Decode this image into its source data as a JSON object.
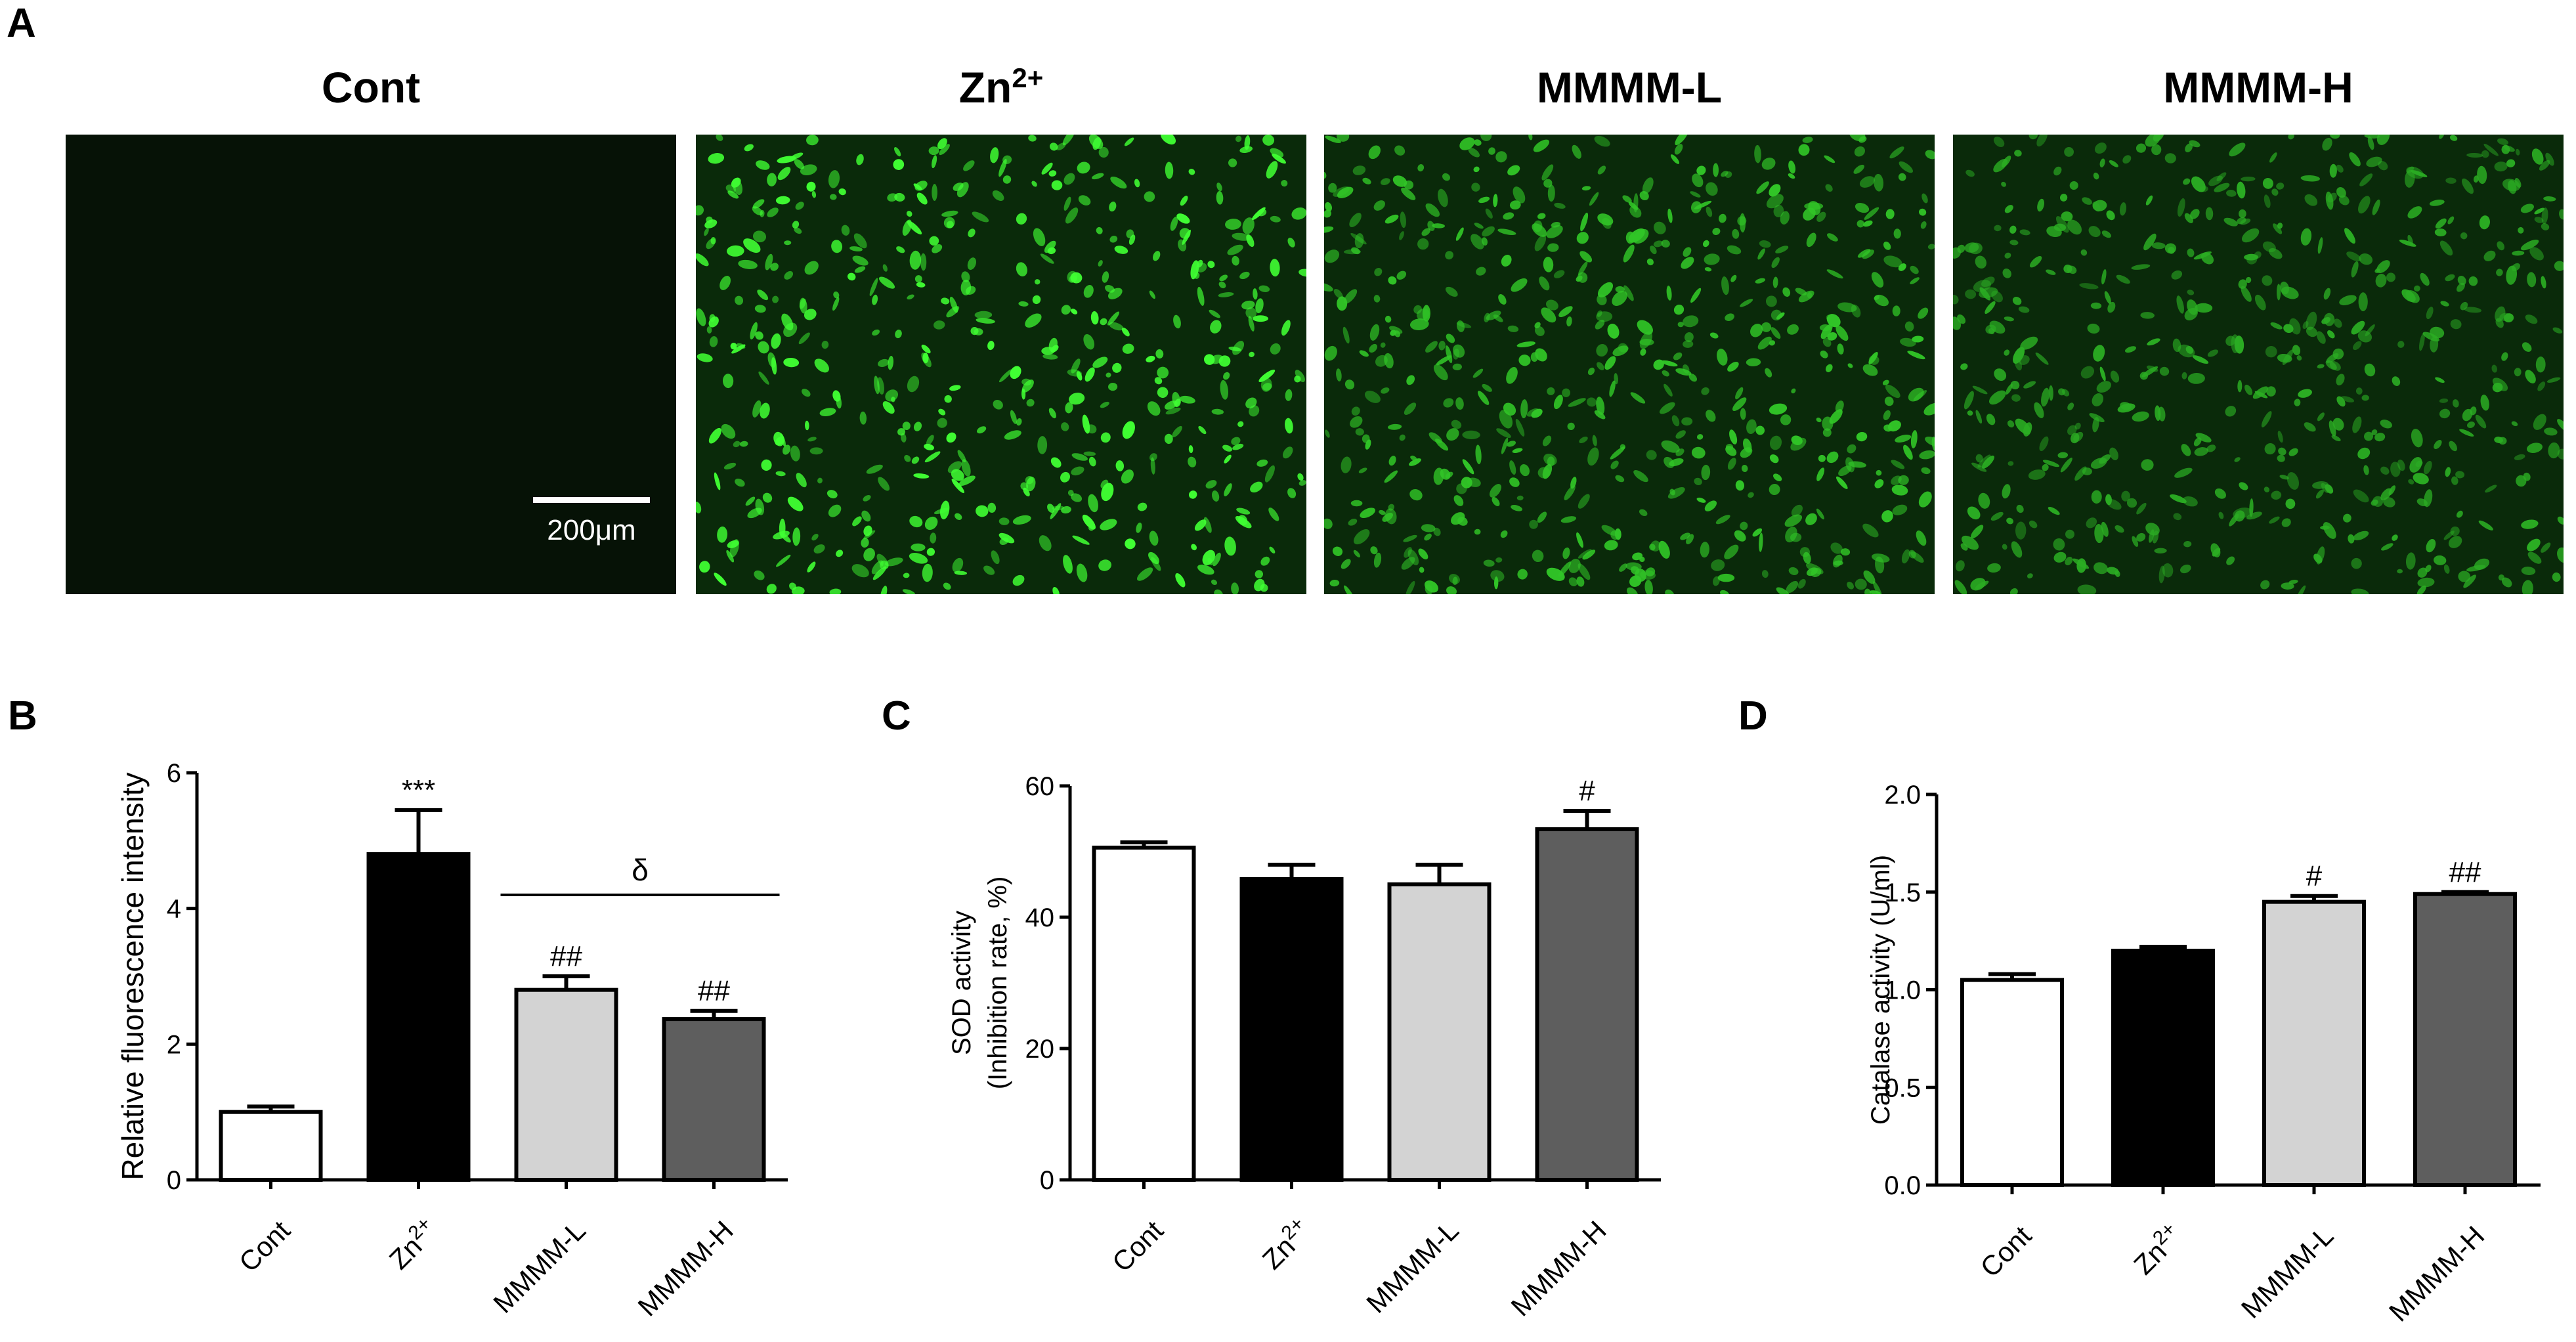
{
  "panels": {
    "a": "A",
    "b": "B",
    "c": "C",
    "d": "D"
  },
  "micrographs": [
    {
      "title": "Cont",
      "brightness": 0.03,
      "cells": 0
    },
    {
      "title": "Zn",
      "sup": "2+",
      "brightness": 1.0,
      "cells": 520
    },
    {
      "title": "MMMM-L",
      "brightness": 0.65,
      "cells": 600
    },
    {
      "title": "MMMM-H",
      "brightness": 0.5,
      "cells": 560
    }
  ],
  "scale_bar": {
    "label": "200μm"
  },
  "chart_data": [
    {
      "type": "bar",
      "panel": "B",
      "ylabel": "Relative fluorescence intensity",
      "ylim": [
        0,
        6
      ],
      "yticks": [
        "0",
        "2",
        "4",
        "6"
      ],
      "categories": [
        "Cont",
        "Zn2+",
        "MMMM-L",
        "MMMM-H"
      ],
      "values": [
        1.0,
        4.8,
        2.8,
        2.37
      ],
      "errors": [
        0.08,
        0.65,
        0.2,
        0.12
      ],
      "colors": [
        "#ffffff",
        "#000000",
        "#d3d3d3",
        "#5e5e5e"
      ],
      "annotations": [
        "",
        "***",
        "##",
        "##"
      ],
      "bracket": {
        "from": 2,
        "to": 3,
        "label": "δ"
      }
    },
    {
      "type": "bar",
      "panel": "C",
      "ylabel": "SOD activity",
      "ylabel2": "(Inhibition rate, %)",
      "ylim": [
        0,
        60
      ],
      "yticks": [
        "0",
        "20",
        "40",
        "60"
      ],
      "categories": [
        "Cont",
        "Zn2+",
        "MMMM-L",
        "MMMM-H"
      ],
      "values": [
        50.6,
        45.8,
        45.0,
        53.4
      ],
      "errors": [
        0.8,
        2.2,
        3.0,
        2.8
      ],
      "colors": [
        "#ffffff",
        "#000000",
        "#d3d3d3",
        "#5e5e5e"
      ],
      "annotations": [
        "",
        "",
        "",
        "#"
      ]
    },
    {
      "type": "bar",
      "panel": "D",
      "ylabel": "Catalase activity (U/ml)",
      "ylim": [
        0,
        2
      ],
      "yticks": [
        "0.0",
        "0.5",
        "1.0",
        "1.5",
        "2.0"
      ],
      "categories": [
        "Cont",
        "Zn2+",
        "MMMM-L",
        "MMMM-H"
      ],
      "values": [
        1.05,
        1.2,
        1.45,
        1.49
      ],
      "errors": [
        0.03,
        0.02,
        0.03,
        0.01
      ],
      "colors": [
        "#ffffff",
        "#000000",
        "#d3d3d3",
        "#5e5e5e"
      ],
      "annotations": [
        "",
        "",
        "#",
        "##"
      ]
    }
  ]
}
